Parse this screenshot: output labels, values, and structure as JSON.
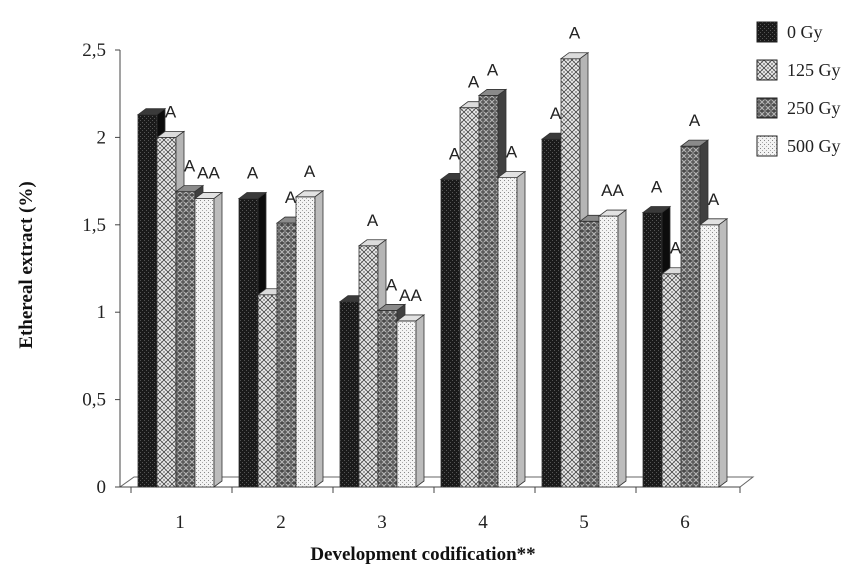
{
  "chart_data": {
    "type": "bar",
    "title": "",
    "xlabel": "Development codification**",
    "ylabel": "Ethereal  extract (%)",
    "ylim": [
      0,
      2.5
    ],
    "yticks": [
      "0",
      "0,5",
      "1",
      "1,5",
      "2",
      "2,5"
    ],
    "categories": [
      "1",
      "2",
      "3",
      "4",
      "5",
      "6"
    ],
    "series": [
      {
        "name": "0 Gy",
        "values": [
          2.13,
          1.65,
          1.06,
          1.76,
          1.99,
          1.57
        ],
        "labels": [
          "",
          "A",
          "",
          "A",
          "A",
          "A"
        ]
      },
      {
        "name": "125 Gy",
        "values": [
          2.0,
          1.1,
          1.38,
          2.17,
          2.45,
          1.22
        ],
        "labels": [
          "A",
          "",
          "A",
          "A",
          "A",
          "A"
        ]
      },
      {
        "name": "250 Gy",
        "values": [
          1.69,
          1.51,
          1.01,
          2.24,
          1.52,
          1.95
        ],
        "labels": [
          "A",
          "A",
          "A",
          "A",
          "",
          "A"
        ]
      },
      {
        "name": "500 Gy",
        "values": [
          1.65,
          1.66,
          0.95,
          1.77,
          1.55,
          1.5
        ],
        "labels": [
          "AA",
          "A",
          "AA",
          "A",
          "AA",
          "A"
        ]
      }
    ],
    "legend_position": "right",
    "grid": false,
    "colors": {
      "s0": "#1a1a1a",
      "s1": "#f2f2f2",
      "s2": "#6e6e6e",
      "s3": "#ececec"
    }
  }
}
